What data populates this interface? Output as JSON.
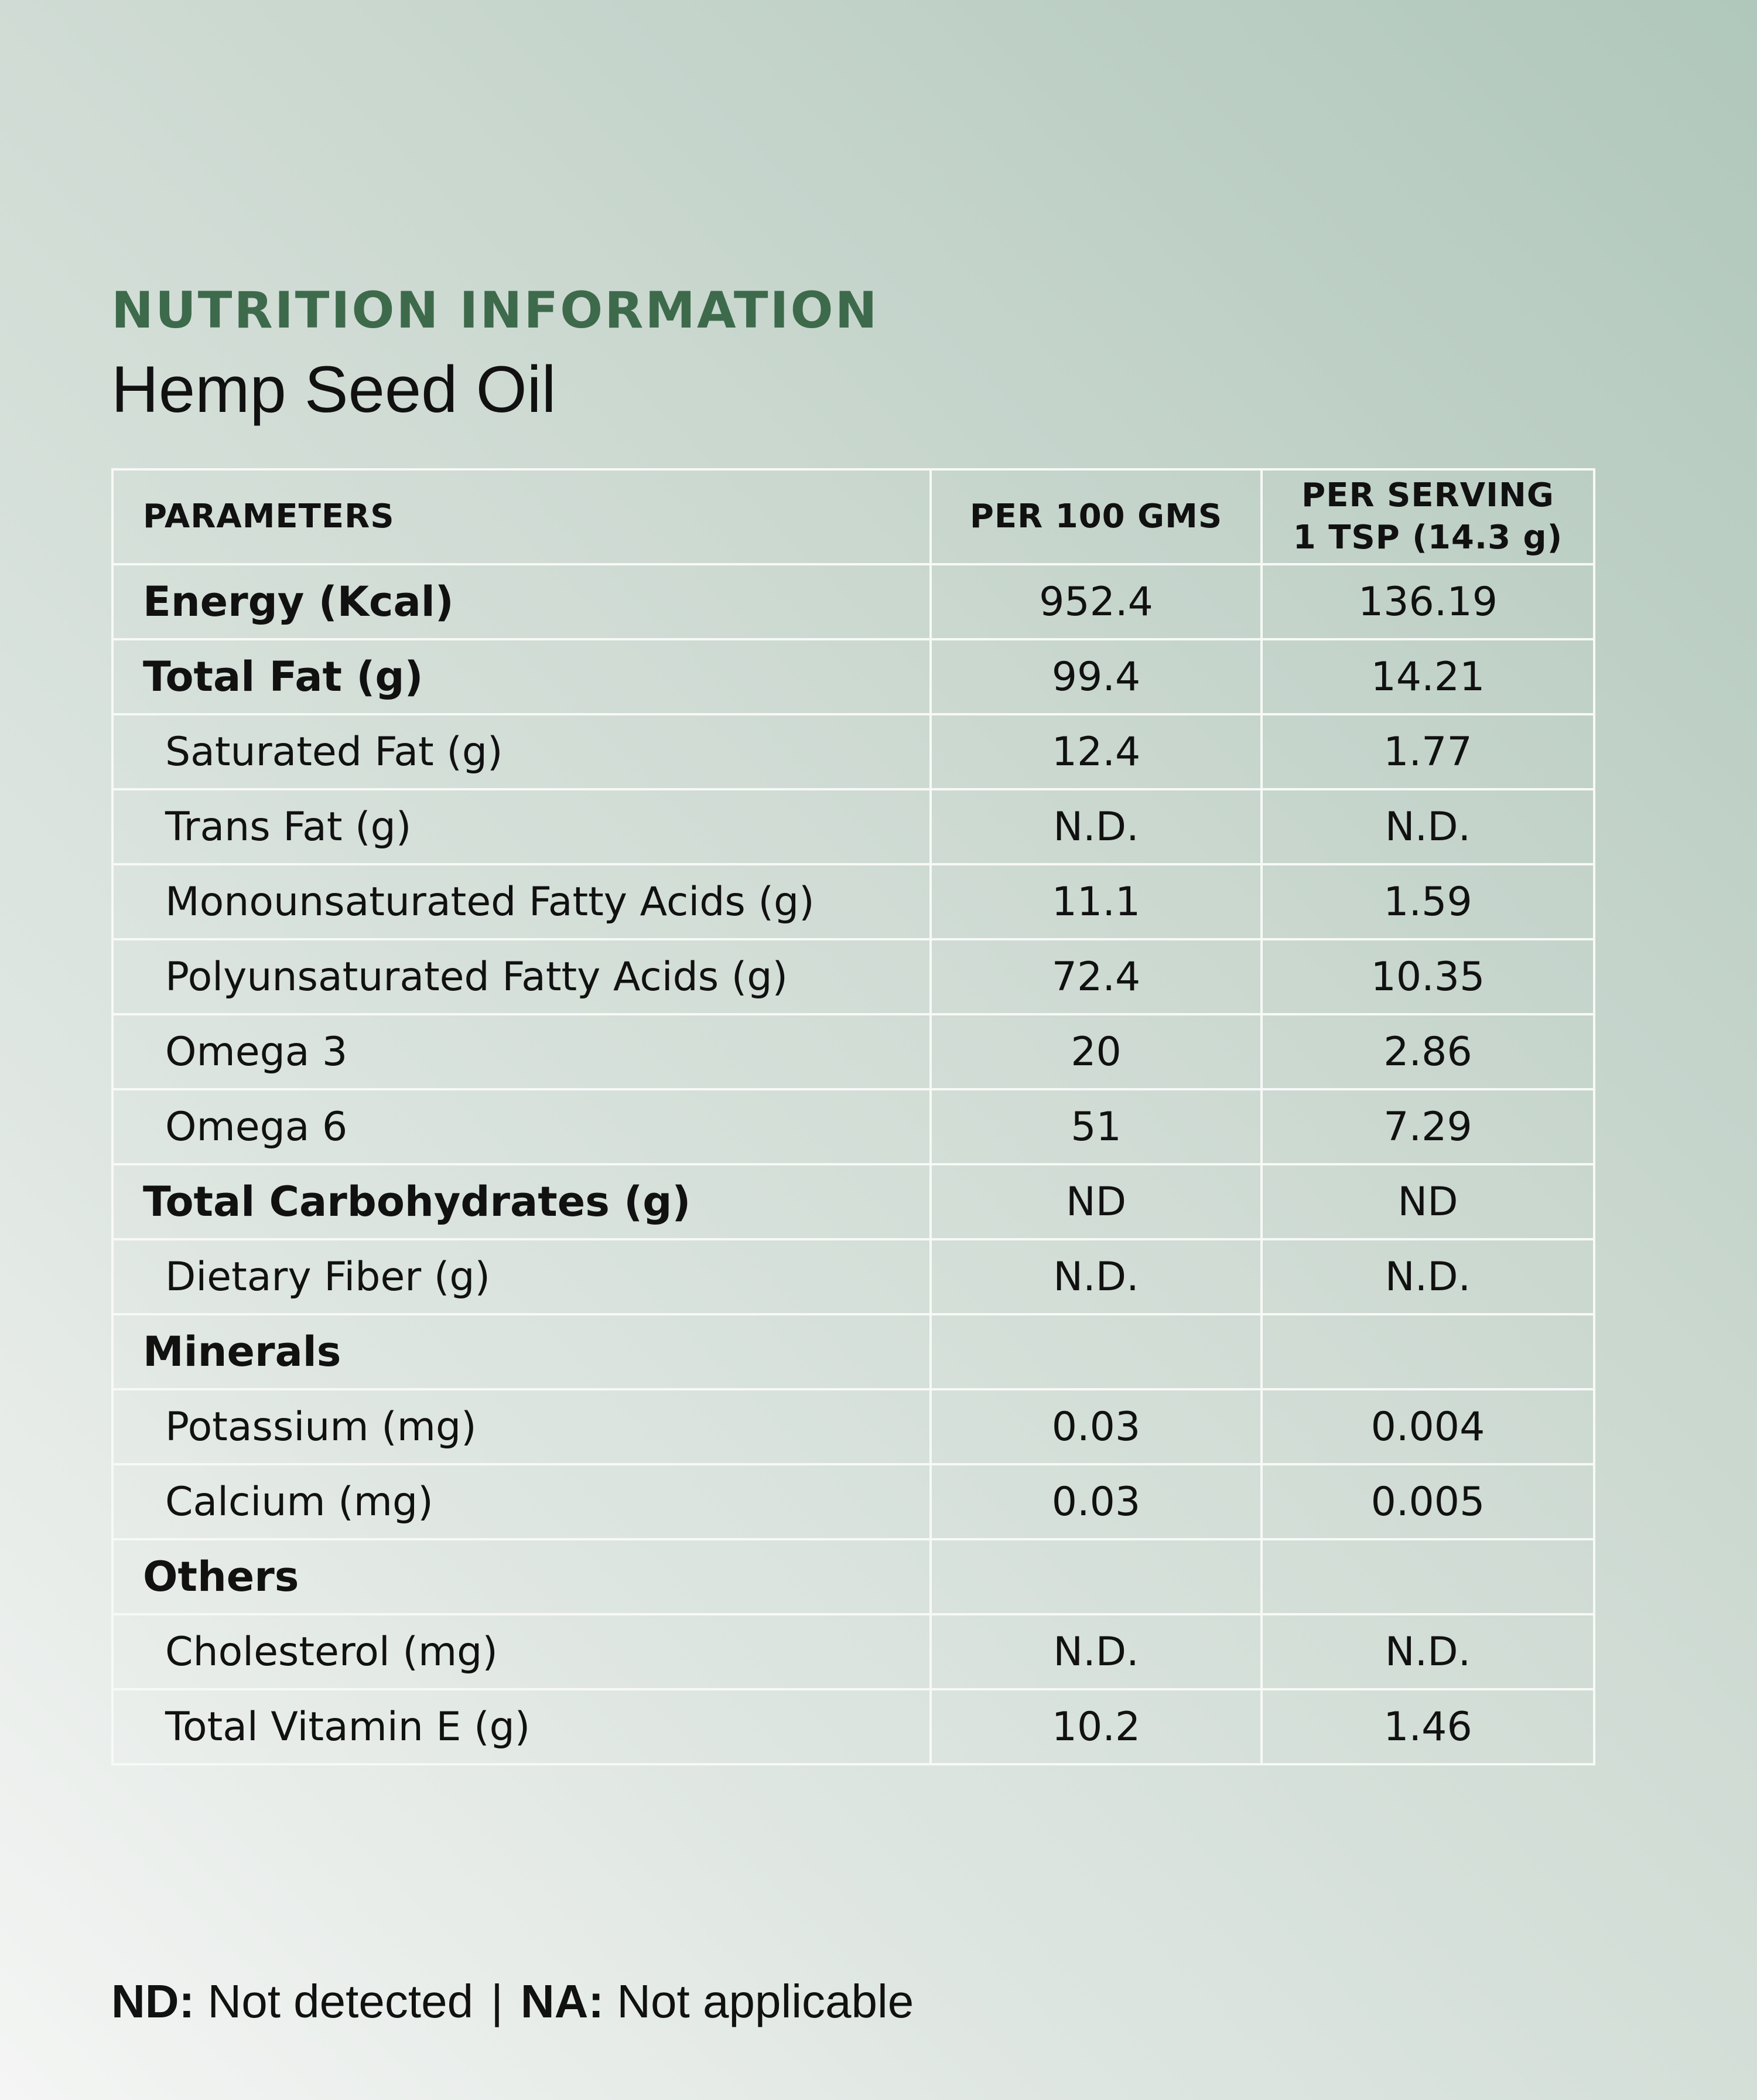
{
  "header": {
    "heading": "NUTRITION INFORMATION",
    "subtitle": "Hemp Seed Oil"
  },
  "table": {
    "columns": {
      "parameters": "PARAMETERS",
      "per_100": "PER 100 GMS",
      "per_serving_line1": "PER SERVING",
      "per_serving_line2": "1 TSP (14.3 g)"
    },
    "rows": [
      {
        "label": "Energy (Kcal)",
        "per_100": "952.4",
        "per_serving": "136.19"
      },
      {
        "label": "Total Fat (g)",
        "per_100": "99.4",
        "per_serving": "14.21"
      },
      {
        "label": "Saturated Fat (g)",
        "per_100": "12.4",
        "per_serving": "1.77"
      },
      {
        "label": "Trans Fat (g)",
        "per_100": "N.D.",
        "per_serving": "N.D."
      },
      {
        "label": "Monounsaturated Fatty Acids (g)",
        "per_100": "11.1",
        "per_serving": "1.59"
      },
      {
        "label": "Polyunsaturated Fatty Acids (g)",
        "per_100": "72.4",
        "per_serving": "10.35"
      },
      {
        "label": "Omega 3",
        "per_100": "20",
        "per_serving": "2.86"
      },
      {
        "label": "Omega 6",
        "per_100": "51",
        "per_serving": "7.29"
      },
      {
        "label": "Total Carbohydrates (g)",
        "per_100": "ND",
        "per_serving": "ND"
      },
      {
        "label": "Dietary Fiber (g)",
        "per_100": "N.D.",
        "per_serving": "N.D."
      },
      {
        "label": "Minerals",
        "per_100": "",
        "per_serving": ""
      },
      {
        "label": "Potassium (mg)",
        "per_100": "0.03",
        "per_serving": "0.004"
      },
      {
        "label": "Calcium (mg)",
        "per_100": "0.03",
        "per_serving": "0.005"
      },
      {
        "label": "Others",
        "per_100": "",
        "per_serving": ""
      },
      {
        "label": "Cholesterol (mg)",
        "per_100": "N.D.",
        "per_serving": "N.D."
      },
      {
        "label": "Total Vitamin E (g)",
        "per_100": "10.2",
        "per_serving": "1.46"
      }
    ]
  },
  "footnote": {
    "nd_abbr": "ND:",
    "nd_text": "Not detected",
    "separator": "|",
    "na_abbr": "NA:",
    "na_text": "Not applicable"
  }
}
